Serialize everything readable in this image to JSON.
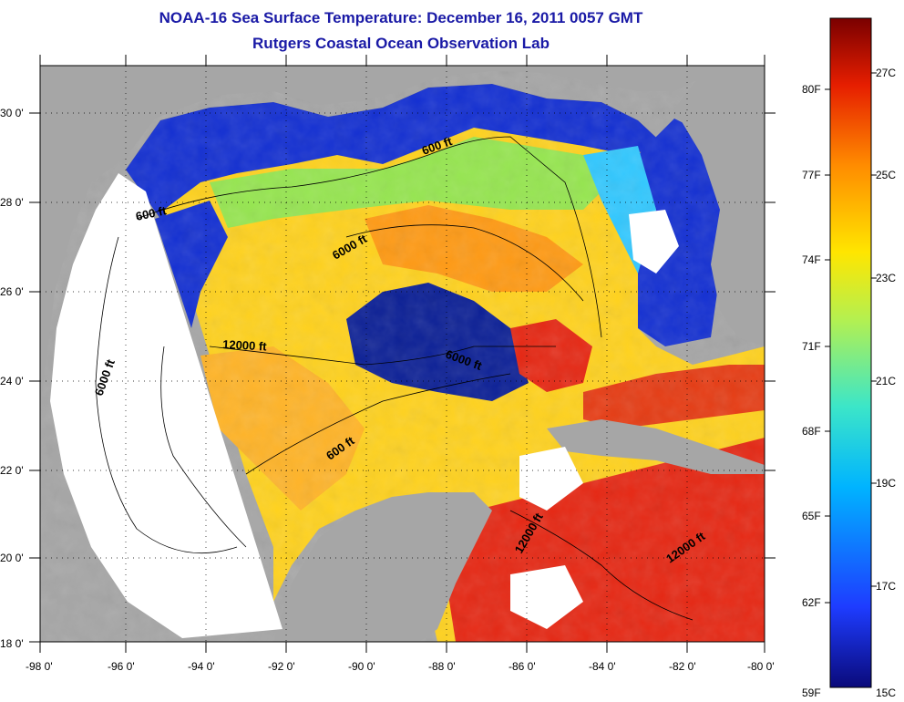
{
  "title": "NOAA-16 Sea Surface Temperature:  December 16, 2011 0057 GMT",
  "subtitle": "Rutgers Coastal Ocean Observation Lab",
  "map": {
    "lon_ticks": [
      "-98 0'",
      "-96 0'",
      "-94 0'",
      "-92 0'",
      "-90 0'",
      "-88 0'",
      "-86 0'",
      "-84 0'",
      "-82 0'",
      "-80 0'"
    ],
    "lat_ticks": [
      "30 0'",
      "28 0'",
      "26 0'",
      "24 0'",
      "22 0'",
      "20 0'",
      "18 0'"
    ],
    "lon_range": [
      -98,
      -80
    ],
    "lat_range": [
      18,
      31
    ],
    "grid": true,
    "contour_labels": [
      "600 ft",
      "600 ft",
      "6000 ft",
      "12000 ft",
      "6000 ft",
      "6000 ft",
      "600 ft",
      "12000 ft",
      "12000 ft"
    ]
  },
  "colorbar": {
    "fahrenheit": [
      "80F",
      "77F",
      "74F",
      "71F",
      "68F",
      "65F",
      "62F",
      "59F"
    ],
    "celsius": [
      "27C",
      "25C",
      "23C",
      "21C",
      "19C",
      "17C",
      "15C"
    ],
    "colors": [
      "#0a0a7a",
      "#1e3cff",
      "#00b4ff",
      "#3ce6c8",
      "#b4f050",
      "#ffe600",
      "#ff8c00",
      "#e61e00",
      "#7a0000"
    ]
  },
  "colors": {
    "land": "#a6a6a6",
    "no_data": "#ffffff",
    "title": "#1a1aa6"
  }
}
